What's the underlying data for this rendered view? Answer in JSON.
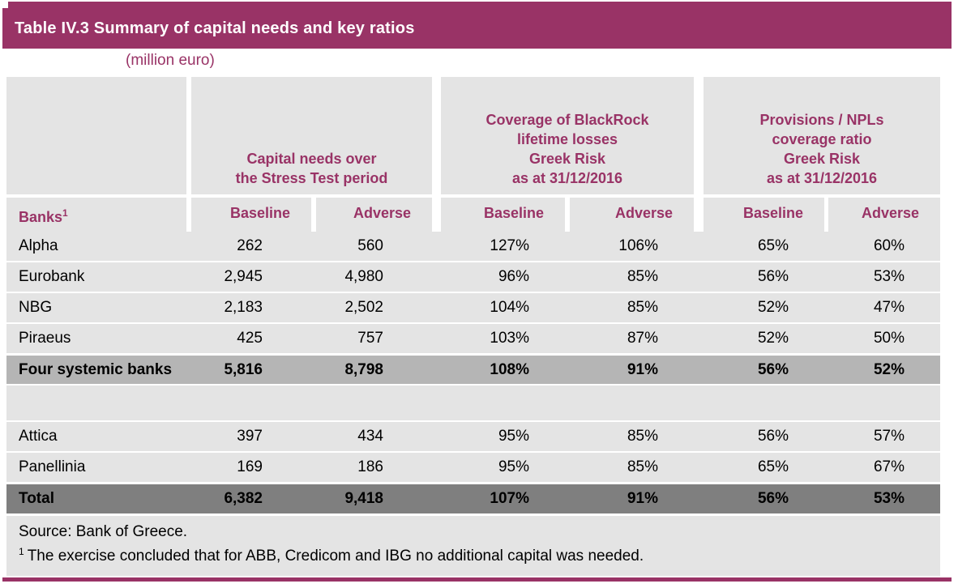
{
  "colors": {
    "accent": "#993366",
    "header_cell_bg": "#e4e4e4",
    "subtotal_row_bg": "#b5b5b5",
    "total_row_bg": "#7f7f7f",
    "title_text": "#ffffff"
  },
  "title": "Table IV.3 Summary of capital needs and key ratios",
  "subtitle": "(million euro)",
  "header": {
    "banks_label": "Banks",
    "banks_footnote_marker": "1",
    "groups": [
      {
        "lines": [
          "Capital needs over",
          "the Stress Test period"
        ]
      },
      {
        "lines": [
          "Coverage of BlackRock",
          "lifetime losses",
          "Greek Risk",
          "as at 31/12/2016"
        ]
      },
      {
        "lines": [
          "Provisions / NPLs",
          "coverage ratio",
          "Greek Risk",
          "as at 31/12/2016"
        ]
      }
    ],
    "scenario_labels": [
      "Baseline",
      "Adverse",
      "Baseline",
      "Adverse",
      "Baseline",
      "Adverse"
    ]
  },
  "table": {
    "banks": [
      {
        "name": "Alpha",
        "values": [
          "262",
          "560",
          "127%",
          "106%",
          "65%",
          "60%"
        ]
      },
      {
        "name": "Eurobank",
        "values": [
          "2,945",
          "4,980",
          "96%",
          "85%",
          "56%",
          "53%"
        ]
      },
      {
        "name": "NBG",
        "values": [
          "2,183",
          "2,502",
          "104%",
          "85%",
          "52%",
          "47%"
        ]
      },
      {
        "name": "Piraeus",
        "values": [
          "425",
          "757",
          "103%",
          "87%",
          "52%",
          "50%"
        ]
      }
    ],
    "subtotal": {
      "name": "Four systemic banks",
      "values": [
        "5,816",
        "8,798",
        "108%",
        "91%",
        "56%",
        "52%"
      ]
    },
    "small_banks": [
      {
        "name": "Attica",
        "values": [
          "397",
          "434",
          "95%",
          "85%",
          "56%",
          "57%"
        ]
      },
      {
        "name": "Panellinia",
        "values": [
          "169",
          "186",
          "95%",
          "85%",
          "65%",
          "67%"
        ]
      }
    ],
    "total": {
      "name": "Total",
      "values": [
        "6,382",
        "9,418",
        "107%",
        "91%",
        "56%",
        "53%"
      ]
    }
  },
  "footer": {
    "source": "Source: Bank of Greece.",
    "footnote_marker": "1",
    "footnote_text": "The exercise concluded that for ABB, Credicom and IBG no additional capital was needed."
  },
  "chart_data": {
    "type": "table",
    "title": "Table IV.3 Summary of capital needs and key ratios",
    "units": "million euro",
    "column_groups": [
      "Capital needs over the Stress Test period",
      "Coverage of BlackRock lifetime losses Greek Risk as at 31/12/2016",
      "Provisions / NPLs coverage ratio Greek Risk as at 31/12/2016"
    ],
    "columns": [
      "Banks",
      "Capital needs Baseline",
      "Capital needs Adverse",
      "BlackRock coverage Baseline %",
      "BlackRock coverage Adverse %",
      "Provisions/NPLs Baseline %",
      "Provisions/NPLs Adverse %"
    ],
    "rows": [
      [
        "Alpha",
        262,
        560,
        127,
        106,
        65,
        60
      ],
      [
        "Eurobank",
        2945,
        4980,
        96,
        85,
        56,
        53
      ],
      [
        "NBG",
        2183,
        2502,
        104,
        85,
        52,
        47
      ],
      [
        "Piraeus",
        425,
        757,
        103,
        87,
        52,
        50
      ],
      [
        "Four systemic banks",
        5816,
        8798,
        108,
        91,
        56,
        52
      ],
      [
        "Attica",
        397,
        434,
        95,
        85,
        56,
        57
      ],
      [
        "Panellinia",
        169,
        186,
        95,
        85,
        65,
        67
      ],
      [
        "Total",
        6382,
        9418,
        107,
        91,
        56,
        53
      ]
    ],
    "source": "Bank of Greece.",
    "footnote": "The exercise concluded that for ABB, Credicom and IBG no additional capital was needed."
  }
}
